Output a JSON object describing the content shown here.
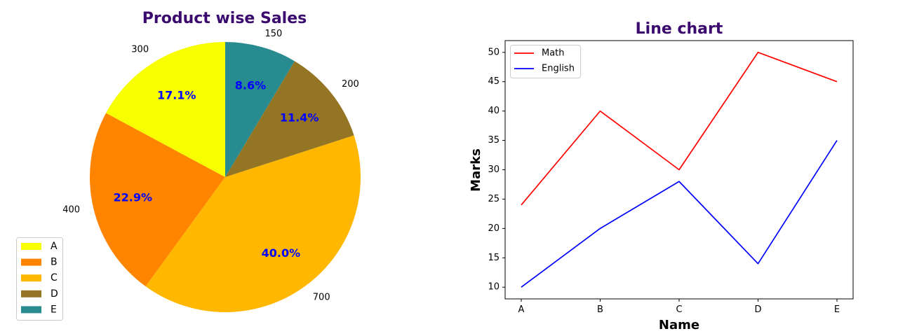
{
  "colors": {
    "title": "#3b0a6e",
    "pct_label": "#0000ff",
    "text": "#000000",
    "axes": "#000000",
    "legend_border": "#cccccc"
  },
  "chart_data": [
    {
      "type": "pie",
      "title": "Product wise Sales",
      "categories": [
        "A",
        "B",
        "C",
        "D",
        "E"
      ],
      "values": [
        300,
        400,
        700,
        200,
        150
      ],
      "percent_labels": [
        "17.1%",
        "22.9%",
        "40.0%",
        "11.4%",
        "8.6%"
      ],
      "colors": [
        "#f7ff00",
        "#ff8500",
        "#ffb700",
        "#937524",
        "#288b90"
      ],
      "start_angle_deg": 90,
      "direction": "counterclockwise",
      "legend": "lower-left"
    },
    {
      "type": "line",
      "title": "Line chart",
      "xlabel": "Name",
      "ylabel": "Marks",
      "categories": [
        "A",
        "B",
        "C",
        "D",
        "E"
      ],
      "series": [
        {
          "name": "Math",
          "values": [
            24,
            40,
            30,
            50,
            45
          ],
          "color": "#ff0000"
        },
        {
          "name": "English",
          "values": [
            10,
            20,
            28,
            14,
            35
          ],
          "color": "#0000ff"
        }
      ],
      "yticks": [
        "10",
        "15",
        "20",
        "25",
        "30",
        "35",
        "40",
        "45",
        "50"
      ],
      "ylim": [
        8,
        52
      ],
      "grid": false,
      "legend": "upper-left"
    }
  ]
}
